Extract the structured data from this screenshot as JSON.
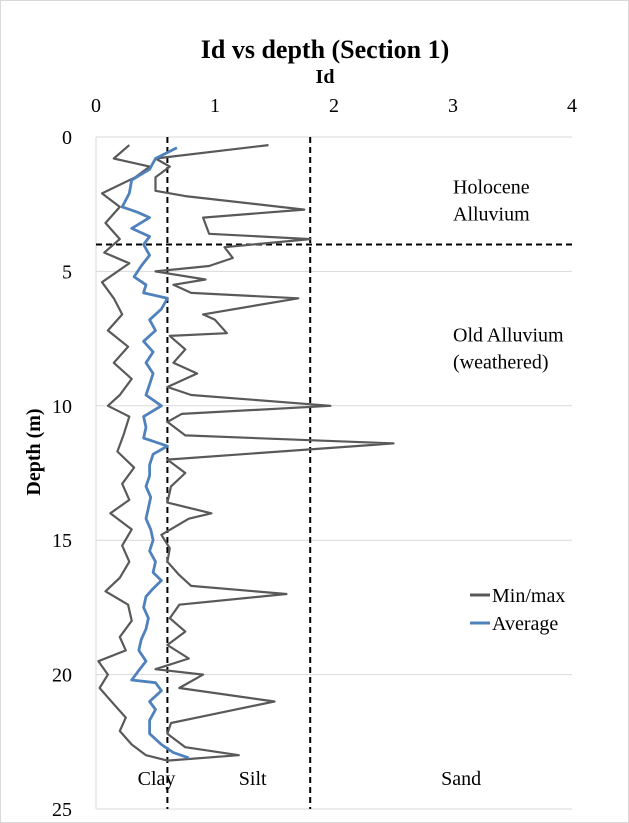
{
  "chart_data": {
    "type": "line",
    "title": "Id vs depth (Section 1)",
    "xlabel": "Id",
    "ylabel": "Depth (m)",
    "x_axis_position": "top",
    "y_axis_inverted": true,
    "xlim": [
      0,
      4
    ],
    "ylim": [
      0,
      25
    ],
    "x_ticks": [
      0,
      1,
      2,
      3,
      4
    ],
    "y_ticks": [
      0,
      5,
      10,
      15,
      20,
      25
    ],
    "grid": "horizontal",
    "legend_position": "right",
    "series": [
      {
        "name": "Min/max",
        "color": "#595959",
        "points": [
          [
            0.28,
            0.3
          ],
          [
            0.15,
            0.8
          ],
          [
            0.45,
            1.1
          ],
          [
            0.33,
            1.5
          ],
          [
            0.05,
            2.1
          ],
          [
            0.2,
            2.6
          ],
          [
            0.08,
            3.2
          ],
          [
            0.2,
            3.8
          ],
          [
            0.07,
            4.3
          ],
          [
            0.28,
            4.7
          ],
          [
            0.05,
            5.4
          ],
          [
            0.15,
            6.0
          ],
          [
            0.22,
            6.6
          ],
          [
            0.1,
            7.2
          ],
          [
            0.27,
            7.8
          ],
          [
            0.15,
            8.4
          ],
          [
            0.3,
            9.0
          ],
          [
            0.2,
            9.6
          ],
          [
            0.1,
            10.0
          ],
          [
            0.28,
            10.4
          ],
          [
            0.23,
            11.1
          ],
          [
            0.18,
            11.7
          ],
          [
            0.32,
            12.3
          ],
          [
            0.22,
            12.9
          ],
          [
            0.28,
            13.5
          ],
          [
            0.12,
            14.0
          ],
          [
            0.3,
            14.6
          ],
          [
            0.22,
            15.2
          ],
          [
            0.28,
            15.8
          ],
          [
            0.2,
            16.4
          ],
          [
            0.08,
            16.9
          ],
          [
            0.27,
            17.4
          ],
          [
            0.3,
            18.0
          ],
          [
            0.2,
            18.6
          ],
          [
            0.25,
            19.1
          ],
          [
            0.02,
            19.5
          ],
          [
            0.1,
            20.0
          ],
          [
            0.03,
            20.5
          ],
          [
            0.15,
            21.1
          ],
          [
            0.25,
            21.6
          ],
          [
            0.2,
            22.1
          ],
          [
            0.3,
            22.6
          ],
          [
            0.42,
            23.0
          ],
          [
            0.6,
            23.2
          ],
          [
            1.2,
            23.0
          ],
          [
            0.75,
            22.7
          ],
          [
            0.6,
            22.2
          ],
          [
            0.63,
            21.8
          ],
          [
            0.85,
            21.6
          ],
          [
            1.5,
            21.0
          ],
          [
            0.7,
            20.5
          ],
          [
            0.9,
            20.0
          ],
          [
            0.5,
            19.8
          ],
          [
            0.78,
            19.4
          ],
          [
            0.6,
            18.9
          ],
          [
            0.75,
            18.4
          ],
          [
            0.62,
            17.9
          ],
          [
            0.7,
            17.4
          ],
          [
            1.6,
            17.0
          ],
          [
            0.8,
            16.7
          ],
          [
            0.7,
            16.3
          ],
          [
            0.6,
            15.8
          ],
          [
            0.62,
            15.3
          ],
          [
            0.55,
            14.8
          ],
          [
            0.78,
            14.2
          ],
          [
            0.97,
            14.0
          ],
          [
            0.6,
            13.6
          ],
          [
            0.63,
            13.0
          ],
          [
            0.75,
            12.5
          ],
          [
            0.6,
            12.0
          ],
          [
            2.5,
            11.4
          ],
          [
            0.75,
            11.1
          ],
          [
            0.6,
            10.6
          ],
          [
            0.72,
            10.3
          ],
          [
            1.97,
            10.0
          ],
          [
            0.8,
            9.6
          ],
          [
            0.6,
            9.3
          ],
          [
            0.85,
            8.8
          ],
          [
            0.65,
            8.4
          ],
          [
            0.75,
            7.9
          ],
          [
            0.62,
            7.4
          ],
          [
            1.1,
            7.3
          ],
          [
            1.0,
            6.8
          ],
          [
            0.9,
            6.6
          ],
          [
            1.7,
            6.0
          ],
          [
            0.8,
            5.8
          ],
          [
            0.65,
            5.5
          ],
          [
            0.92,
            5.3
          ],
          [
            0.5,
            5.0
          ],
          [
            0.95,
            4.8
          ],
          [
            1.15,
            4.5
          ],
          [
            1.08,
            4.1
          ],
          [
            1.8,
            3.8
          ],
          [
            0.95,
            3.6
          ],
          [
            0.9,
            3.0
          ],
          [
            1.75,
            2.7
          ],
          [
            0.75,
            2.2
          ],
          [
            0.5,
            2.0
          ],
          [
            0.5,
            1.5
          ],
          [
            0.62,
            1.1
          ],
          [
            0.5,
            0.8
          ],
          [
            1.45,
            0.3
          ]
        ]
      },
      {
        "name": "Average",
        "color": "#4f81bd",
        "points": [
          [
            0.68,
            0.4
          ],
          [
            0.5,
            0.8
          ],
          [
            0.45,
            1.2
          ],
          [
            0.3,
            1.6
          ],
          [
            0.28,
            2.1
          ],
          [
            0.22,
            2.6
          ],
          [
            0.35,
            2.8
          ],
          [
            0.45,
            3.0
          ],
          [
            0.3,
            3.4
          ],
          [
            0.45,
            3.7
          ],
          [
            0.4,
            4.0
          ],
          [
            0.45,
            4.4
          ],
          [
            0.38,
            4.8
          ],
          [
            0.32,
            5.2
          ],
          [
            0.42,
            5.5
          ],
          [
            0.4,
            5.8
          ],
          [
            0.6,
            6.0
          ],
          [
            0.55,
            6.4
          ],
          [
            0.45,
            6.8
          ],
          [
            0.5,
            7.2
          ],
          [
            0.4,
            7.6
          ],
          [
            0.48,
            8.0
          ],
          [
            0.42,
            8.4
          ],
          [
            0.48,
            8.8
          ],
          [
            0.45,
            9.2
          ],
          [
            0.42,
            9.6
          ],
          [
            0.55,
            10.0
          ],
          [
            0.4,
            10.4
          ],
          [
            0.42,
            10.8
          ],
          [
            0.4,
            11.2
          ],
          [
            0.6,
            11.5
          ],
          [
            0.48,
            11.8
          ],
          [
            0.45,
            12.2
          ],
          [
            0.45,
            12.6
          ],
          [
            0.42,
            13.0
          ],
          [
            0.46,
            13.4
          ],
          [
            0.44,
            13.8
          ],
          [
            0.42,
            14.2
          ],
          [
            0.46,
            14.6
          ],
          [
            0.48,
            15.0
          ],
          [
            0.45,
            15.4
          ],
          [
            0.5,
            15.8
          ],
          [
            0.48,
            16.2
          ],
          [
            0.55,
            16.5
          ],
          [
            0.48,
            16.8
          ],
          [
            0.42,
            17.1
          ],
          [
            0.4,
            17.5
          ],
          [
            0.44,
            17.9
          ],
          [
            0.42,
            18.3
          ],
          [
            0.38,
            18.7
          ],
          [
            0.36,
            19.1
          ],
          [
            0.42,
            19.5
          ],
          [
            0.35,
            19.9
          ],
          [
            0.3,
            20.2
          ],
          [
            0.5,
            20.3
          ],
          [
            0.55,
            20.6
          ],
          [
            0.45,
            21.0
          ],
          [
            0.5,
            21.3
          ],
          [
            0.45,
            21.7
          ],
          [
            0.45,
            22.2
          ],
          [
            0.55,
            22.6
          ],
          [
            0.65,
            22.9
          ],
          [
            0.78,
            23.1
          ]
        ]
      }
    ],
    "reference_lines": [
      {
        "orientation": "vertical",
        "value": 0.6,
        "style": "dashed"
      },
      {
        "orientation": "vertical",
        "value": 1.8,
        "style": "dashed"
      },
      {
        "orientation": "horizontal",
        "value": 4,
        "style": "dashed"
      }
    ],
    "annotations": [
      {
        "id": "holocene",
        "lines": [
          "Holocene",
          "Alluvium"
        ],
        "x": 3.0,
        "y": 2.1
      },
      {
        "id": "old-alluvium",
        "lines": [
          "Old Alluvium",
          "(weathered)"
        ],
        "x": 3.0,
        "y": 7.6
      },
      {
        "id": "clay",
        "lines": [
          "Clay"
        ],
        "x": 0.35,
        "y": 24.1
      },
      {
        "id": "silt",
        "lines": [
          "Silt"
        ],
        "x": 1.2,
        "y": 24.1
      },
      {
        "id": "sand",
        "lines": [
          "Sand"
        ],
        "x": 2.9,
        "y": 24.1
      }
    ]
  }
}
